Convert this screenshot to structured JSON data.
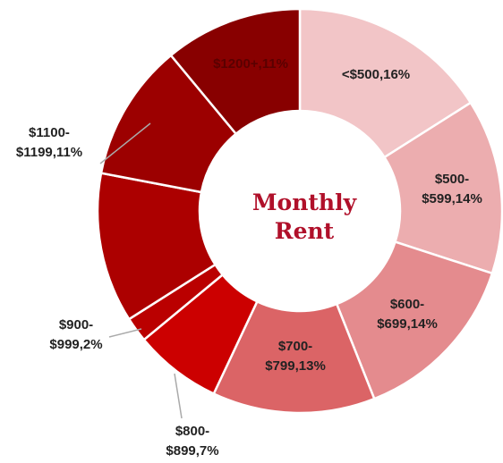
{
  "chart_data": {
    "type": "donut",
    "title": "Monthly Rent",
    "values": [
      16,
      14,
      14,
      13,
      7,
      2,
      12,
      11,
      11
    ],
    "value_labels": [
      "<$500,16%",
      "$500-$599,14%",
      "$600-$699,14%",
      "$700-$799,13%",
      "$800-$899,7%",
      "$900-$999,2%",
      null,
      "$1100-$1199,11%",
      "$1200+,11%"
    ],
    "colors": [
      "#f2c5c7",
      "#ecadaf",
      "#e48b8e",
      "#db6466",
      "#cc0000",
      "#ba0000",
      "#ac0000",
      "#9c0000",
      "#880000"
    ]
  }
}
